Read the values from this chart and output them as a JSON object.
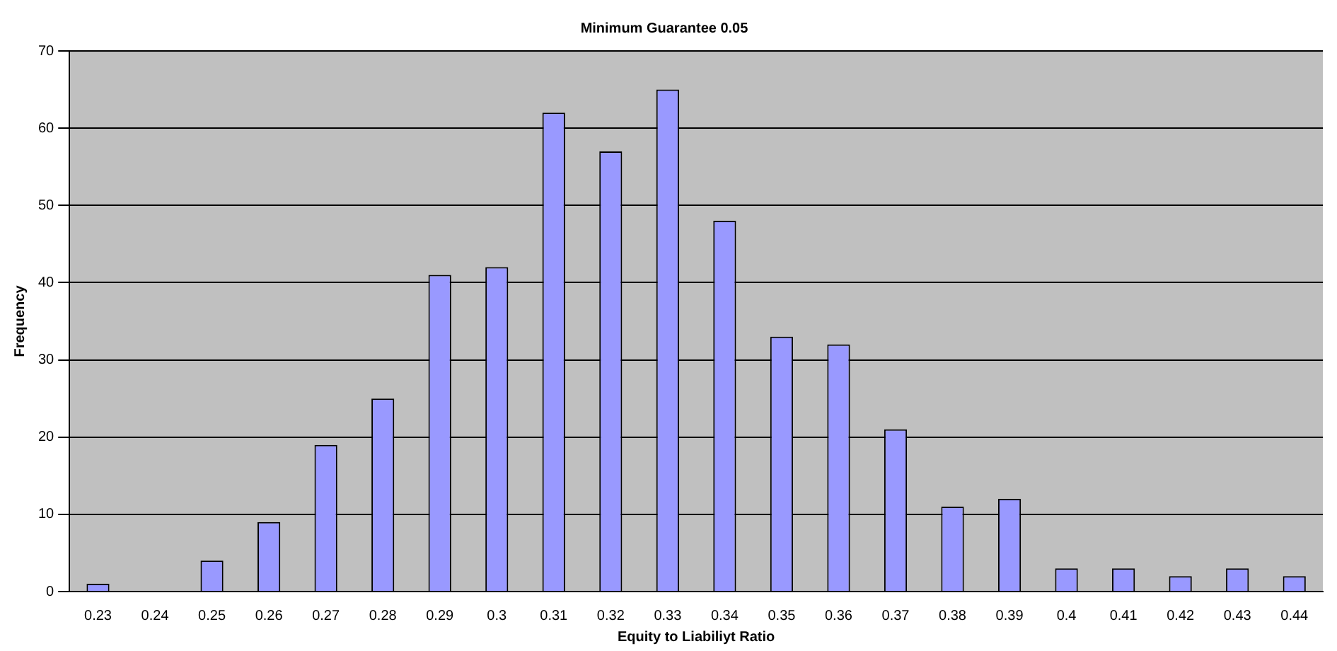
{
  "chart_data": {
    "type": "bar",
    "title": "Minimum Guarantee 0.05",
    "xlabel": "Equity to Liabiliyt Ratio",
    "ylabel": "Frequency",
    "categories": [
      "0.23",
      "0.24",
      "0.25",
      "0.26",
      "0.27",
      "0.28",
      "0.29",
      "0.3",
      "0.31",
      "0.32",
      "0.33",
      "0.34",
      "0.35",
      "0.36",
      "0.37",
      "0.38",
      "0.39",
      "0.4",
      "0.41",
      "0.42",
      "0.43",
      "0.44"
    ],
    "values": [
      1,
      0,
      4,
      9,
      19,
      25,
      41,
      42,
      62,
      57,
      65,
      48,
      33,
      32,
      21,
      11,
      12,
      3,
      3,
      2,
      3,
      2
    ],
    "color": "#9999ff",
    "ylim": [
      0,
      70
    ],
    "yticks": [
      0,
      10,
      20,
      30,
      40,
      50,
      60,
      70
    ],
    "grid": "y",
    "legend": false
  }
}
